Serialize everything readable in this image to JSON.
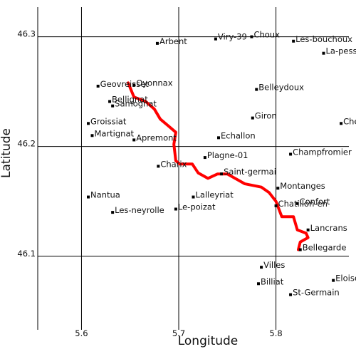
{
  "map": {
    "x_label": "Longitude",
    "y_label": "Latitude",
    "x_range": [
      5.555,
      5.875
    ],
    "y_range": [
      46.033,
      46.327
    ],
    "x_ticks": [
      {
        "value": 5.6,
        "label": "5.6"
      },
      {
        "value": 5.7,
        "label": "5.7"
      },
      {
        "value": 5.8,
        "label": "5.8"
      }
    ],
    "y_ticks": [
      {
        "value": 46.1,
        "label": "46.1"
      },
      {
        "value": 46.2,
        "label": "46.2"
      },
      {
        "value": 46.3,
        "label": "46.3"
      }
    ],
    "route_color": "#ff0000",
    "route": [
      [
        5.648,
        46.258
      ],
      [
        5.654,
        46.245
      ],
      [
        5.666,
        46.241
      ],
      [
        5.675,
        46.234
      ],
      [
        5.681,
        46.225
      ],
      [
        5.689,
        46.219
      ],
      [
        5.697,
        46.213
      ],
      [
        5.695,
        46.202
      ],
      [
        5.697,
        46.187
      ],
      [
        5.701,
        46.184
      ],
      [
        5.714,
        46.184
      ],
      [
        5.72,
        46.176
      ],
      [
        5.73,
        46.171
      ],
      [
        5.74,
        46.175
      ],
      [
        5.75,
        46.175
      ],
      [
        5.768,
        46.166
      ],
      [
        5.785,
        46.163
      ],
      [
        5.793,
        46.158
      ],
      [
        5.8,
        46.15
      ],
      [
        5.806,
        46.136
      ],
      [
        5.818,
        46.136
      ],
      [
        5.822,
        46.124
      ],
      [
        5.831,
        46.121
      ],
      [
        5.833,
        46.117
      ],
      [
        5.825,
        46.113
      ],
      [
        5.823,
        46.106
      ]
    ],
    "places": [
      {
        "name": "Arbent",
        "lon": 5.678,
        "lat": 46.294
      },
      {
        "name": "Viry-39",
        "lon": 5.738,
        "lat": 46.298
      },
      {
        "name": "Choux",
        "lon": 5.775,
        "lat": 46.3
      },
      {
        "name": "Les-bouchoux",
        "lon": 5.818,
        "lat": 46.296
      },
      {
        "name": "La-pesse",
        "lon": 5.849,
        "lat": 46.285
      },
      {
        "name": "Geovreisset",
        "lon": 5.617,
        "lat": 46.255
      },
      {
        "name": "Oyonnax",
        "lon": 5.654,
        "lat": 46.256
      },
      {
        "name": "Bellignat",
        "lon": 5.629,
        "lat": 46.241
      },
      {
        "name": "Samognat",
        "lon": 5.632,
        "lat": 46.237
      },
      {
        "name": "Belleydoux",
        "lon": 5.78,
        "lat": 46.252
      },
      {
        "name": "Groissiat",
        "lon": 5.607,
        "lat": 46.221
      },
      {
        "name": "Giron",
        "lon": 5.776,
        "lat": 46.226
      },
      {
        "name": "Chez",
        "lon": 5.867,
        "lat": 46.221
      },
      {
        "name": "Martignat",
        "lon": 5.611,
        "lat": 46.21
      },
      {
        "name": "Apremont",
        "lon": 5.654,
        "lat": 46.206
      },
      {
        "name": "Echallon",
        "lon": 5.741,
        "lat": 46.208
      },
      {
        "name": "Champfromier",
        "lon": 5.815,
        "lat": 46.193
      },
      {
        "name": "Plagne-01",
        "lon": 5.727,
        "lat": 46.19
      },
      {
        "name": "Charix",
        "lon": 5.679,
        "lat": 46.182
      },
      {
        "name": "Saint-germai",
        "lon": 5.744,
        "lat": 46.175
      },
      {
        "name": "Montanges",
        "lon": 5.802,
        "lat": 46.162
      },
      {
        "name": "Nantua",
        "lon": 5.607,
        "lat": 46.154
      },
      {
        "name": "Lalleyriat",
        "lon": 5.715,
        "lat": 46.154
      },
      {
        "name": "Confort",
        "lon": 5.822,
        "lat": 46.148
      },
      {
        "name": "Chatillon-en",
        "lon": 5.8,
        "lat": 46.146
      },
      {
        "name": "Les-neyrolle",
        "lon": 5.632,
        "lat": 46.14
      },
      {
        "name": "Le-poizat",
        "lon": 5.697,
        "lat": 46.143
      },
      {
        "name": "Lancrans",
        "lon": 5.833,
        "lat": 46.124
      },
      {
        "name": "Bellegarde",
        "lon": 5.825,
        "lat": 46.106
      },
      {
        "name": "Villes",
        "lon": 5.785,
        "lat": 46.09
      },
      {
        "name": "Billiat",
        "lon": 5.782,
        "lat": 46.075
      },
      {
        "name": "Eloise",
        "lon": 5.859,
        "lat": 46.078
      },
      {
        "name": "St-Germain",
        "lon": 5.815,
        "lat": 46.065
      }
    ]
  }
}
